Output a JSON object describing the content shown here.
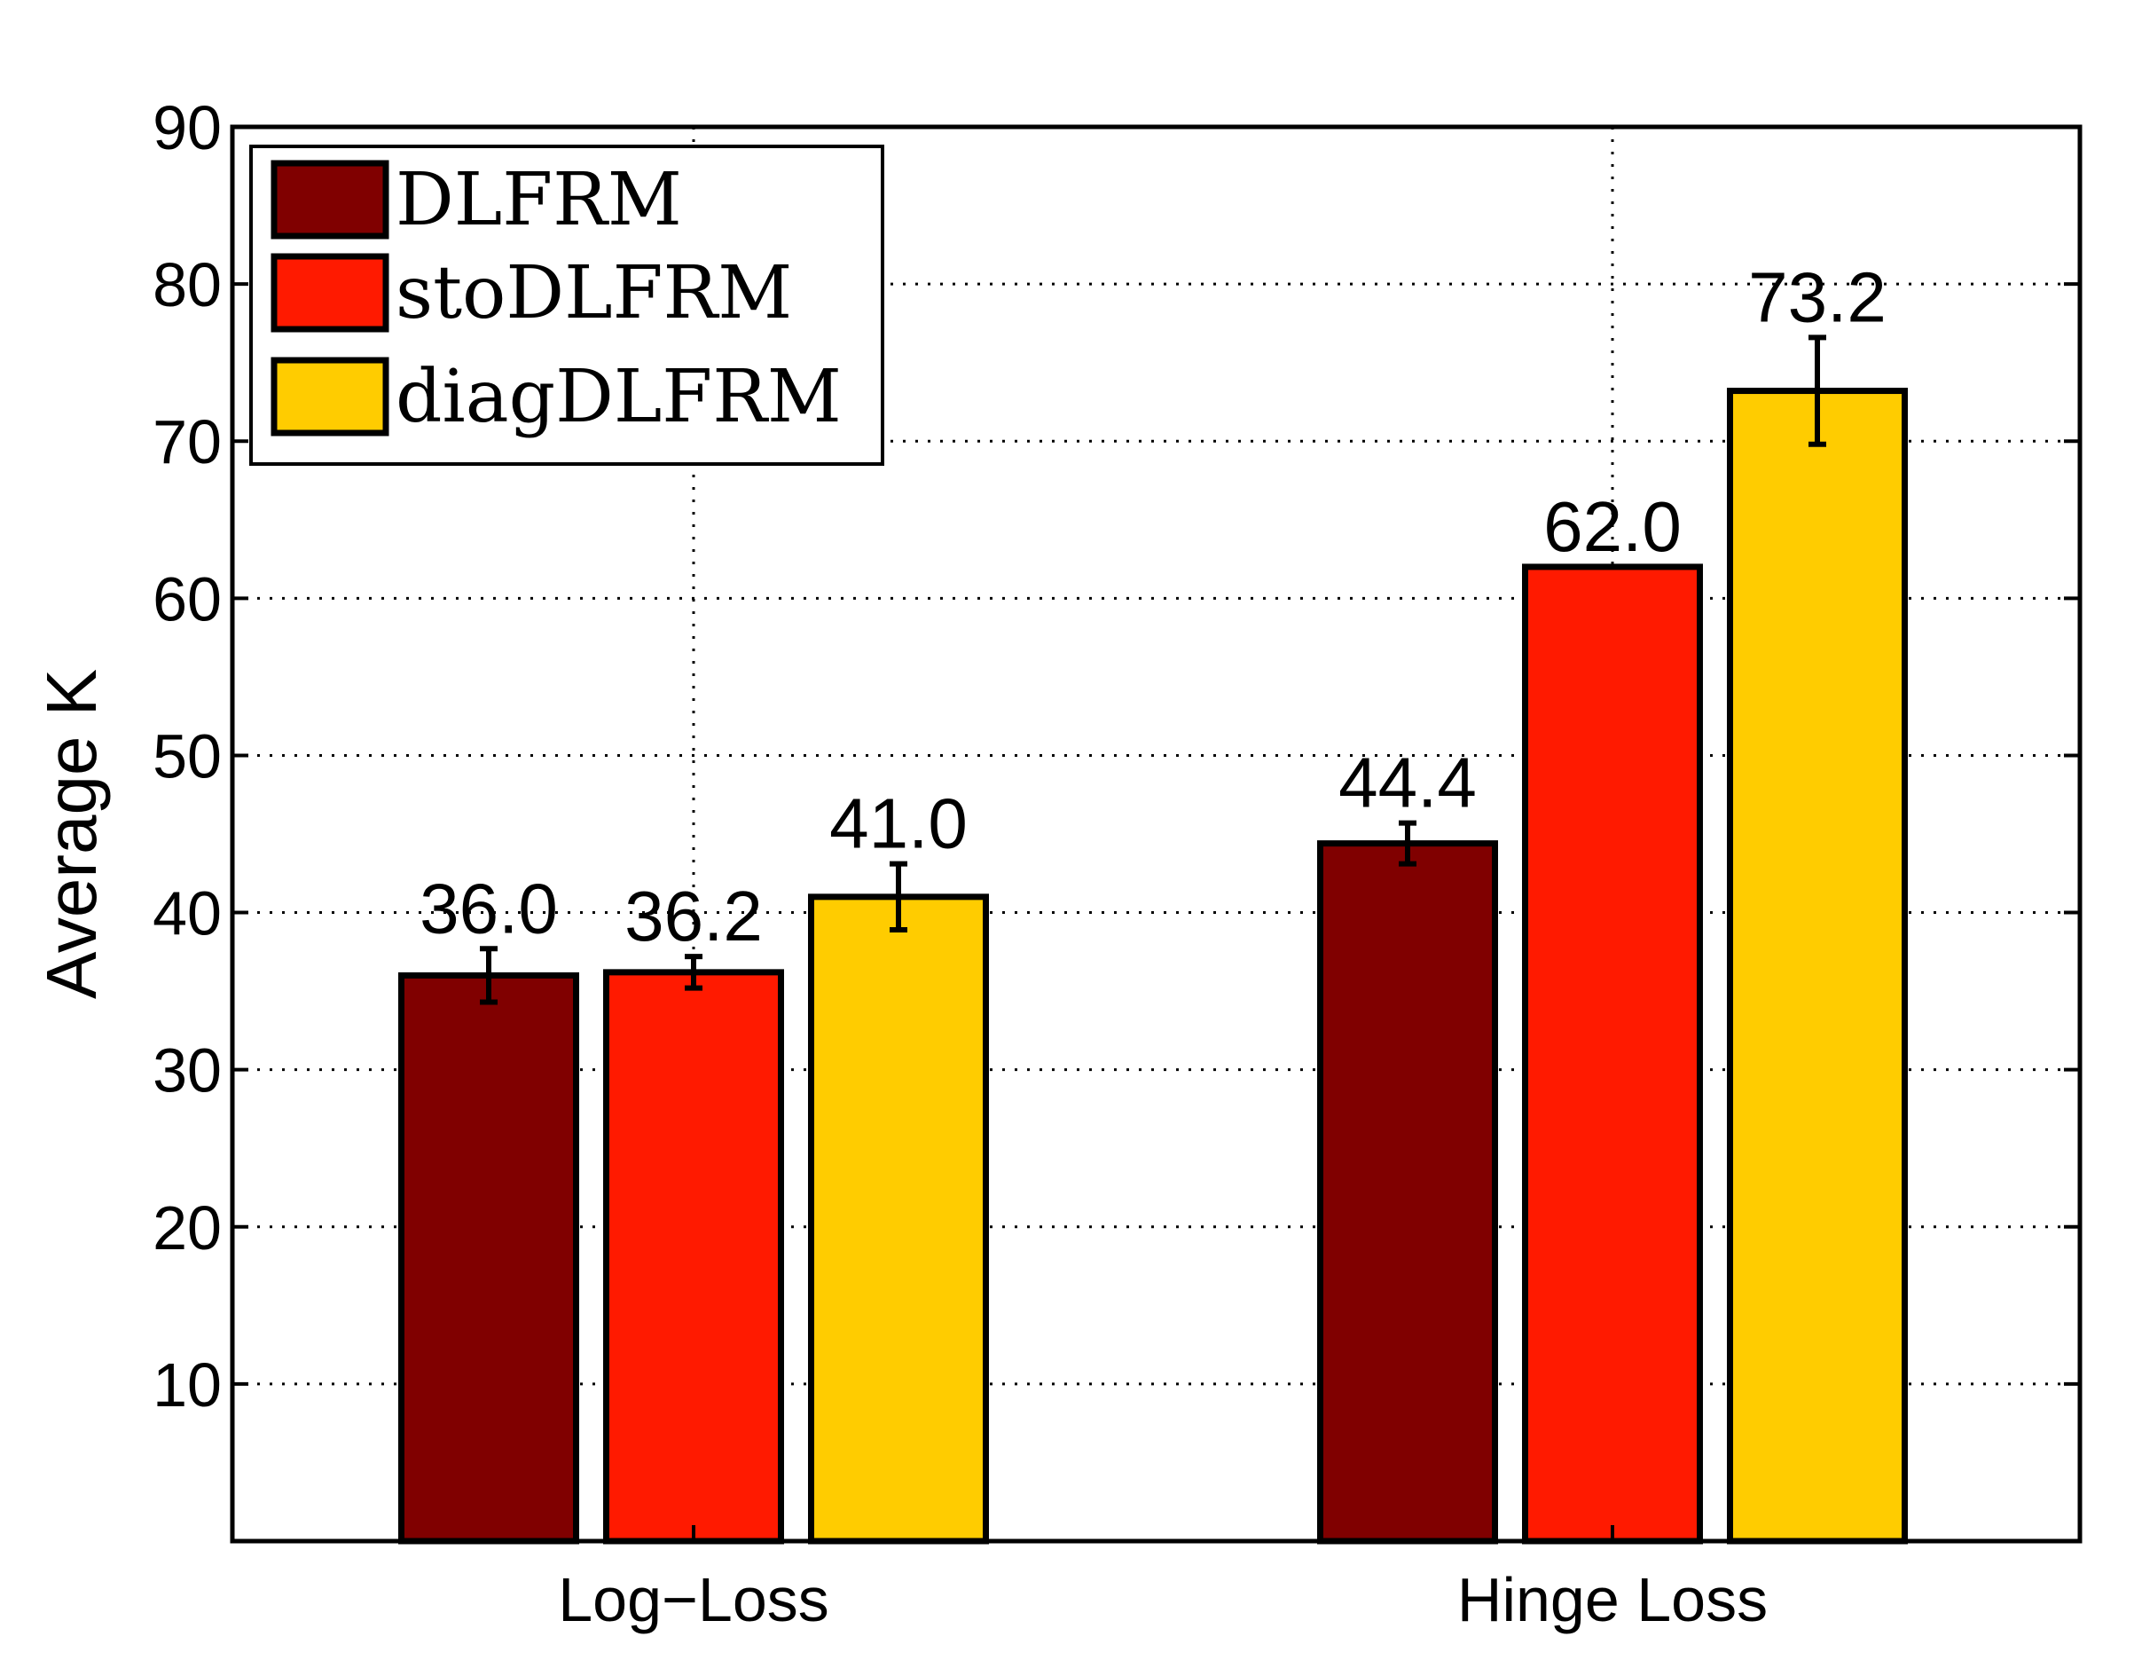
{
  "chart_data": {
    "type": "bar",
    "title": "",
    "xlabel": "",
    "ylabel": "Average K",
    "categories": [
      "Log−Loss",
      "Hinge Loss"
    ],
    "series": [
      {
        "name": "DLFRM",
        "color": "#800000",
        "values": [
          36.0,
          44.4
        ],
        "errors": [
          1.7,
          1.3
        ],
        "labels": [
          "36.0",
          "44.4"
        ]
      },
      {
        "name": "stoDLFRM",
        "color": "#ff1a00",
        "values": [
          36.2,
          62.0
        ],
        "errors": [
          1.0,
          0.0
        ],
        "labels": [
          "36.2",
          "62.0"
        ]
      },
      {
        "name": "diagDLFRM",
        "color": "#ffcc00",
        "values": [
          41.0,
          73.2
        ],
        "errors": [
          2.1,
          3.4
        ],
        "labels": [
          "41.0",
          "73.2"
        ]
      }
    ],
    "ylim": [
      0,
      90
    ],
    "yticks": [
      10,
      20,
      30,
      40,
      50,
      60,
      70,
      80,
      90
    ],
    "grid": true,
    "legend": "top-left"
  }
}
